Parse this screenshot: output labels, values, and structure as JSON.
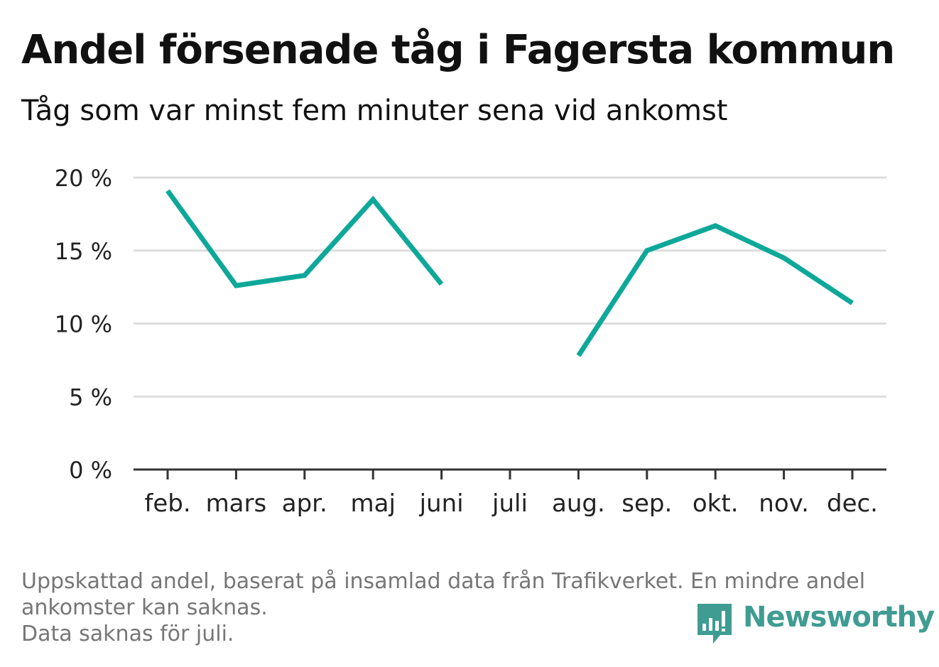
{
  "title": "Andel försenade tåg i Fagersta kommun",
  "subtitle": "Tåg som var minst fem minuter sena vid ankomst",
  "footnote": {
    "line1": "Uppskattad andel, baserat på insamlad data från Trafikverket. En mindre andel",
    "line2": "ankomster kan saknas.",
    "line3": "Data saknas för juli."
  },
  "brand": {
    "name": "Newsworthy",
    "color": "#3f9c92",
    "icon": "newsworthy-logo-icon"
  },
  "colors": {
    "line": "#0ea89a",
    "grid": "#dddddd",
    "axis": "#333333",
    "tick_label": "#222222"
  },
  "chart_data": {
    "type": "line",
    "title": "Andel försenade tåg i Fagersta kommun",
    "subtitle": "Tåg som var minst fem minuter sena vid ankomst",
    "xlabel": "",
    "ylabel": "",
    "categories": [
      "feb.",
      "mars",
      "apr.",
      "maj",
      "juni",
      "juli",
      "aug.",
      "sep.",
      "okt.",
      "nov.",
      "dec."
    ],
    "series": [
      {
        "values": [
          19.1,
          12.6,
          13.3,
          18.5,
          12.7,
          null,
          7.8,
          15.0,
          16.7,
          14.5,
          11.4
        ]
      }
    ],
    "ylim": [
      0,
      20
    ],
    "yticks": [
      0,
      5,
      10,
      15,
      20
    ],
    "ytick_labels": [
      "0 %",
      "5 %",
      "10 %",
      "15 %",
      "20 %"
    ],
    "grid": true,
    "legend": "none"
  }
}
